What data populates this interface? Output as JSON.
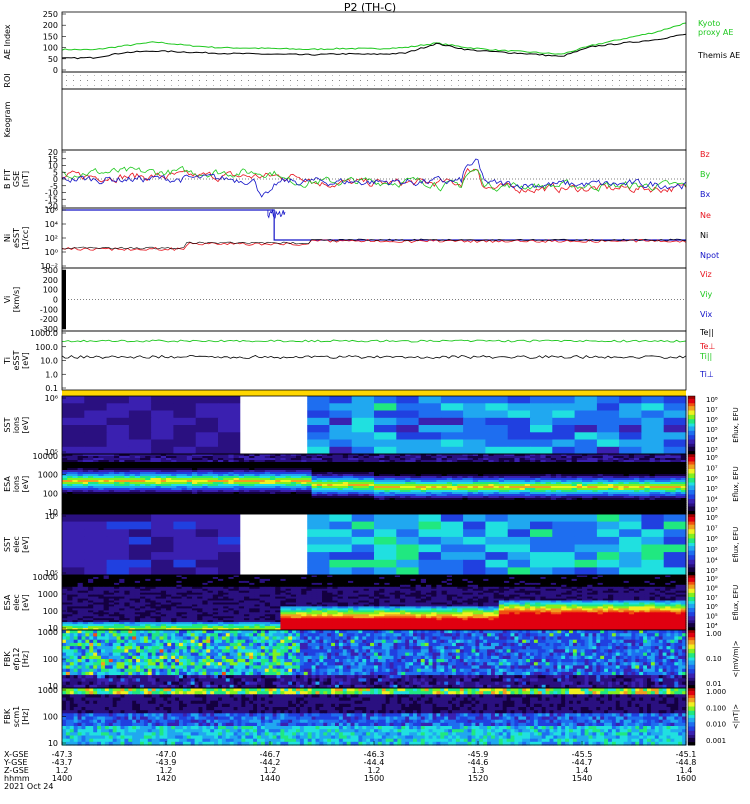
{
  "chart_data": {
    "type": "line",
    "title": "P2 (TH-C)",
    "colors": {
      "red": "#e8141e",
      "green": "#1ec81e",
      "blue": "#1414c8",
      "black": "#000000",
      "yellow": "#ffd700"
    },
    "panels": [
      {
        "id": "ae",
        "ylabel": [
          "AE Index"
        ],
        "ticks": [
          "250",
          "200",
          "150",
          "100",
          "50",
          "0"
        ],
        "legend": [
          "Kyoto",
          "proxy AE",
          "Themis AE"
        ],
        "series": [
          {
            "name": "Kyoto proxy AE",
            "color": "#1ec81e",
            "x": [
              1400,
              1410,
              1420,
              1430,
              1440,
              1450,
              1460,
              1470,
              1480,
              1490,
              1500,
              1510,
              1520,
              1530,
              1540,
              1550,
              1560,
              1570,
              1580,
              1590,
              1600
            ],
            "y": [
              92,
              90,
              108,
              125,
              110,
              100,
              98,
              95,
              92,
              96,
              95,
              100,
              120,
              100,
              88,
              80,
              70,
              110,
              140,
              168,
              210
            ]
          },
          {
            "name": "Themis AE",
            "color": "#000000",
            "x": [
              1400,
              1410,
              1420,
              1430,
              1440,
              1450,
              1460,
              1470,
              1480,
              1490,
              1500,
              1510,
              1520,
              1530,
              1540,
              1550,
              1560,
              1570,
              1580,
              1590,
              1600
            ],
            "y": [
              52,
              55,
              78,
              85,
              80,
              75,
              72,
              70,
              68,
              72,
              70,
              75,
              118,
              90,
              80,
              72,
              60,
              105,
              120,
              135,
              160
            ]
          }
        ]
      },
      {
        "id": "roi",
        "ylabel": [
          "ROI"
        ]
      },
      {
        "id": "keogram",
        "ylabel": [
          "Keogram"
        ]
      },
      {
        "id": "bfield",
        "ylabel": [
          "B FIT",
          "GSE",
          "[nT]"
        ],
        "ticks": [
          "20",
          "15",
          "10",
          "5",
          "0",
          "-5",
          "-10",
          "-15",
          "-20"
        ],
        "legend": [
          "Bz",
          "By",
          "Bx"
        ]
      },
      {
        "id": "density",
        "ylabel": [
          "Ni",
          "eSST",
          "[1/cc]"
        ],
        "ticks": [
          "10⁶",
          "10⁴",
          "10²",
          "10⁰",
          "10⁻²"
        ],
        "legend": [
          "Ne",
          "Ni",
          "Npot"
        ]
      },
      {
        "id": "velocity",
        "ylabel": [
          "Vi",
          "[km/s]"
        ],
        "ticks": [
          "300",
          "200",
          "100",
          "0",
          "-100",
          "-200",
          "-300"
        ],
        "legend": [
          "Vix",
          "Viy",
          "Viz"
        ]
      },
      {
        "id": "temp",
        "ylabel": [
          "Ti",
          "eSST",
          "[eV]"
        ],
        "ticks": [
          "1000.0",
          "100.0",
          "10.0",
          "1.0",
          "0.1"
        ],
        "legend": [
          "Te||",
          "Te⊥",
          "Ti||",
          "Ti⊥"
        ]
      },
      {
        "id": "sst_i",
        "ylabel": [
          "SST",
          "ions",
          "[eV]"
        ],
        "ticks": [
          "10⁶",
          "10⁵"
        ],
        "colorbar": "Eflux, EFU",
        "cbticks": [
          "10⁸",
          "10⁷",
          "10⁶",
          "10⁵",
          "10⁴",
          "10³"
        ]
      },
      {
        "id": "esa_i",
        "ylabel": [
          "ESA",
          "ions",
          "[eV]"
        ],
        "ticks": [
          "10000",
          "1000",
          "100",
          "10"
        ],
        "colorbar": "Eflux, EFU",
        "cbticks": [
          "10⁸",
          "10⁷",
          "10⁶",
          "10⁵",
          "10⁴",
          "10³"
        ]
      },
      {
        "id": "sst_e",
        "ylabel": [
          "SST",
          "elec",
          "[eV]"
        ],
        "ticks": [
          "10⁶",
          "10⁵"
        ],
        "colorbar": "Eflux, EFU",
        "cbticks": [
          "10⁸",
          "10⁷",
          "10⁶",
          "10⁵",
          "10⁴",
          "10³"
        ]
      },
      {
        "id": "esa_e",
        "ylabel": [
          "ESA",
          "elec",
          "[eV]"
        ],
        "ticks": [
          "10000",
          "1000",
          "100",
          "10"
        ],
        "colorbar": "Eflux, EFU",
        "cbticks": [
          "10⁹",
          "10⁸",
          "10⁷",
          "10⁶",
          "10⁵",
          "10⁴"
        ]
      },
      {
        "id": "fbk_e",
        "ylabel": [
          "FBK",
          "efp12",
          "[Hz]"
        ],
        "ticks": [
          "1000",
          "100",
          "10"
        ],
        "colorbar": "<|mV/m|>",
        "cbticks": [
          "1.00",
          "0.10",
          "0.01"
        ]
      },
      {
        "id": "fbk_b",
        "ylabel": [
          "FBK",
          "scm1",
          "[Hz]"
        ],
        "ticks": [
          "1000",
          "100",
          "10"
        ],
        "colorbar": "<|nT|>",
        "cbticks": [
          "1.000",
          "0.100",
          "0.010",
          "0.001"
        ]
      }
    ],
    "x_axis": {
      "row_labels": [
        "X-GSE",
        "Y-GSE",
        "Z-GSE",
        "hhmm",
        "2021 Oct 24"
      ],
      "ticks": [
        {
          "x": "-47.3",
          "y": "-43.7",
          "z": "1.2",
          "t": "1400"
        },
        {
          "x": "-47.0",
          "y": "-43.9",
          "z": "1.2",
          "t": "1420"
        },
        {
          "x": "-46.7",
          "y": "-44.2",
          "z": "1.2",
          "t": "1440"
        },
        {
          "x": "-46.3",
          "y": "-44.4",
          "z": "1.2",
          "t": "1500"
        },
        {
          "x": "-45.9",
          "y": "-44.6",
          "z": "1.3",
          "t": "1520"
        },
        {
          "x": "-45.5",
          "y": "-44.7",
          "z": "1.4",
          "t": "1540"
        },
        {
          "x": "-45.1",
          "y": "-44.8",
          "z": "1.4",
          "t": "1600"
        }
      ]
    }
  }
}
